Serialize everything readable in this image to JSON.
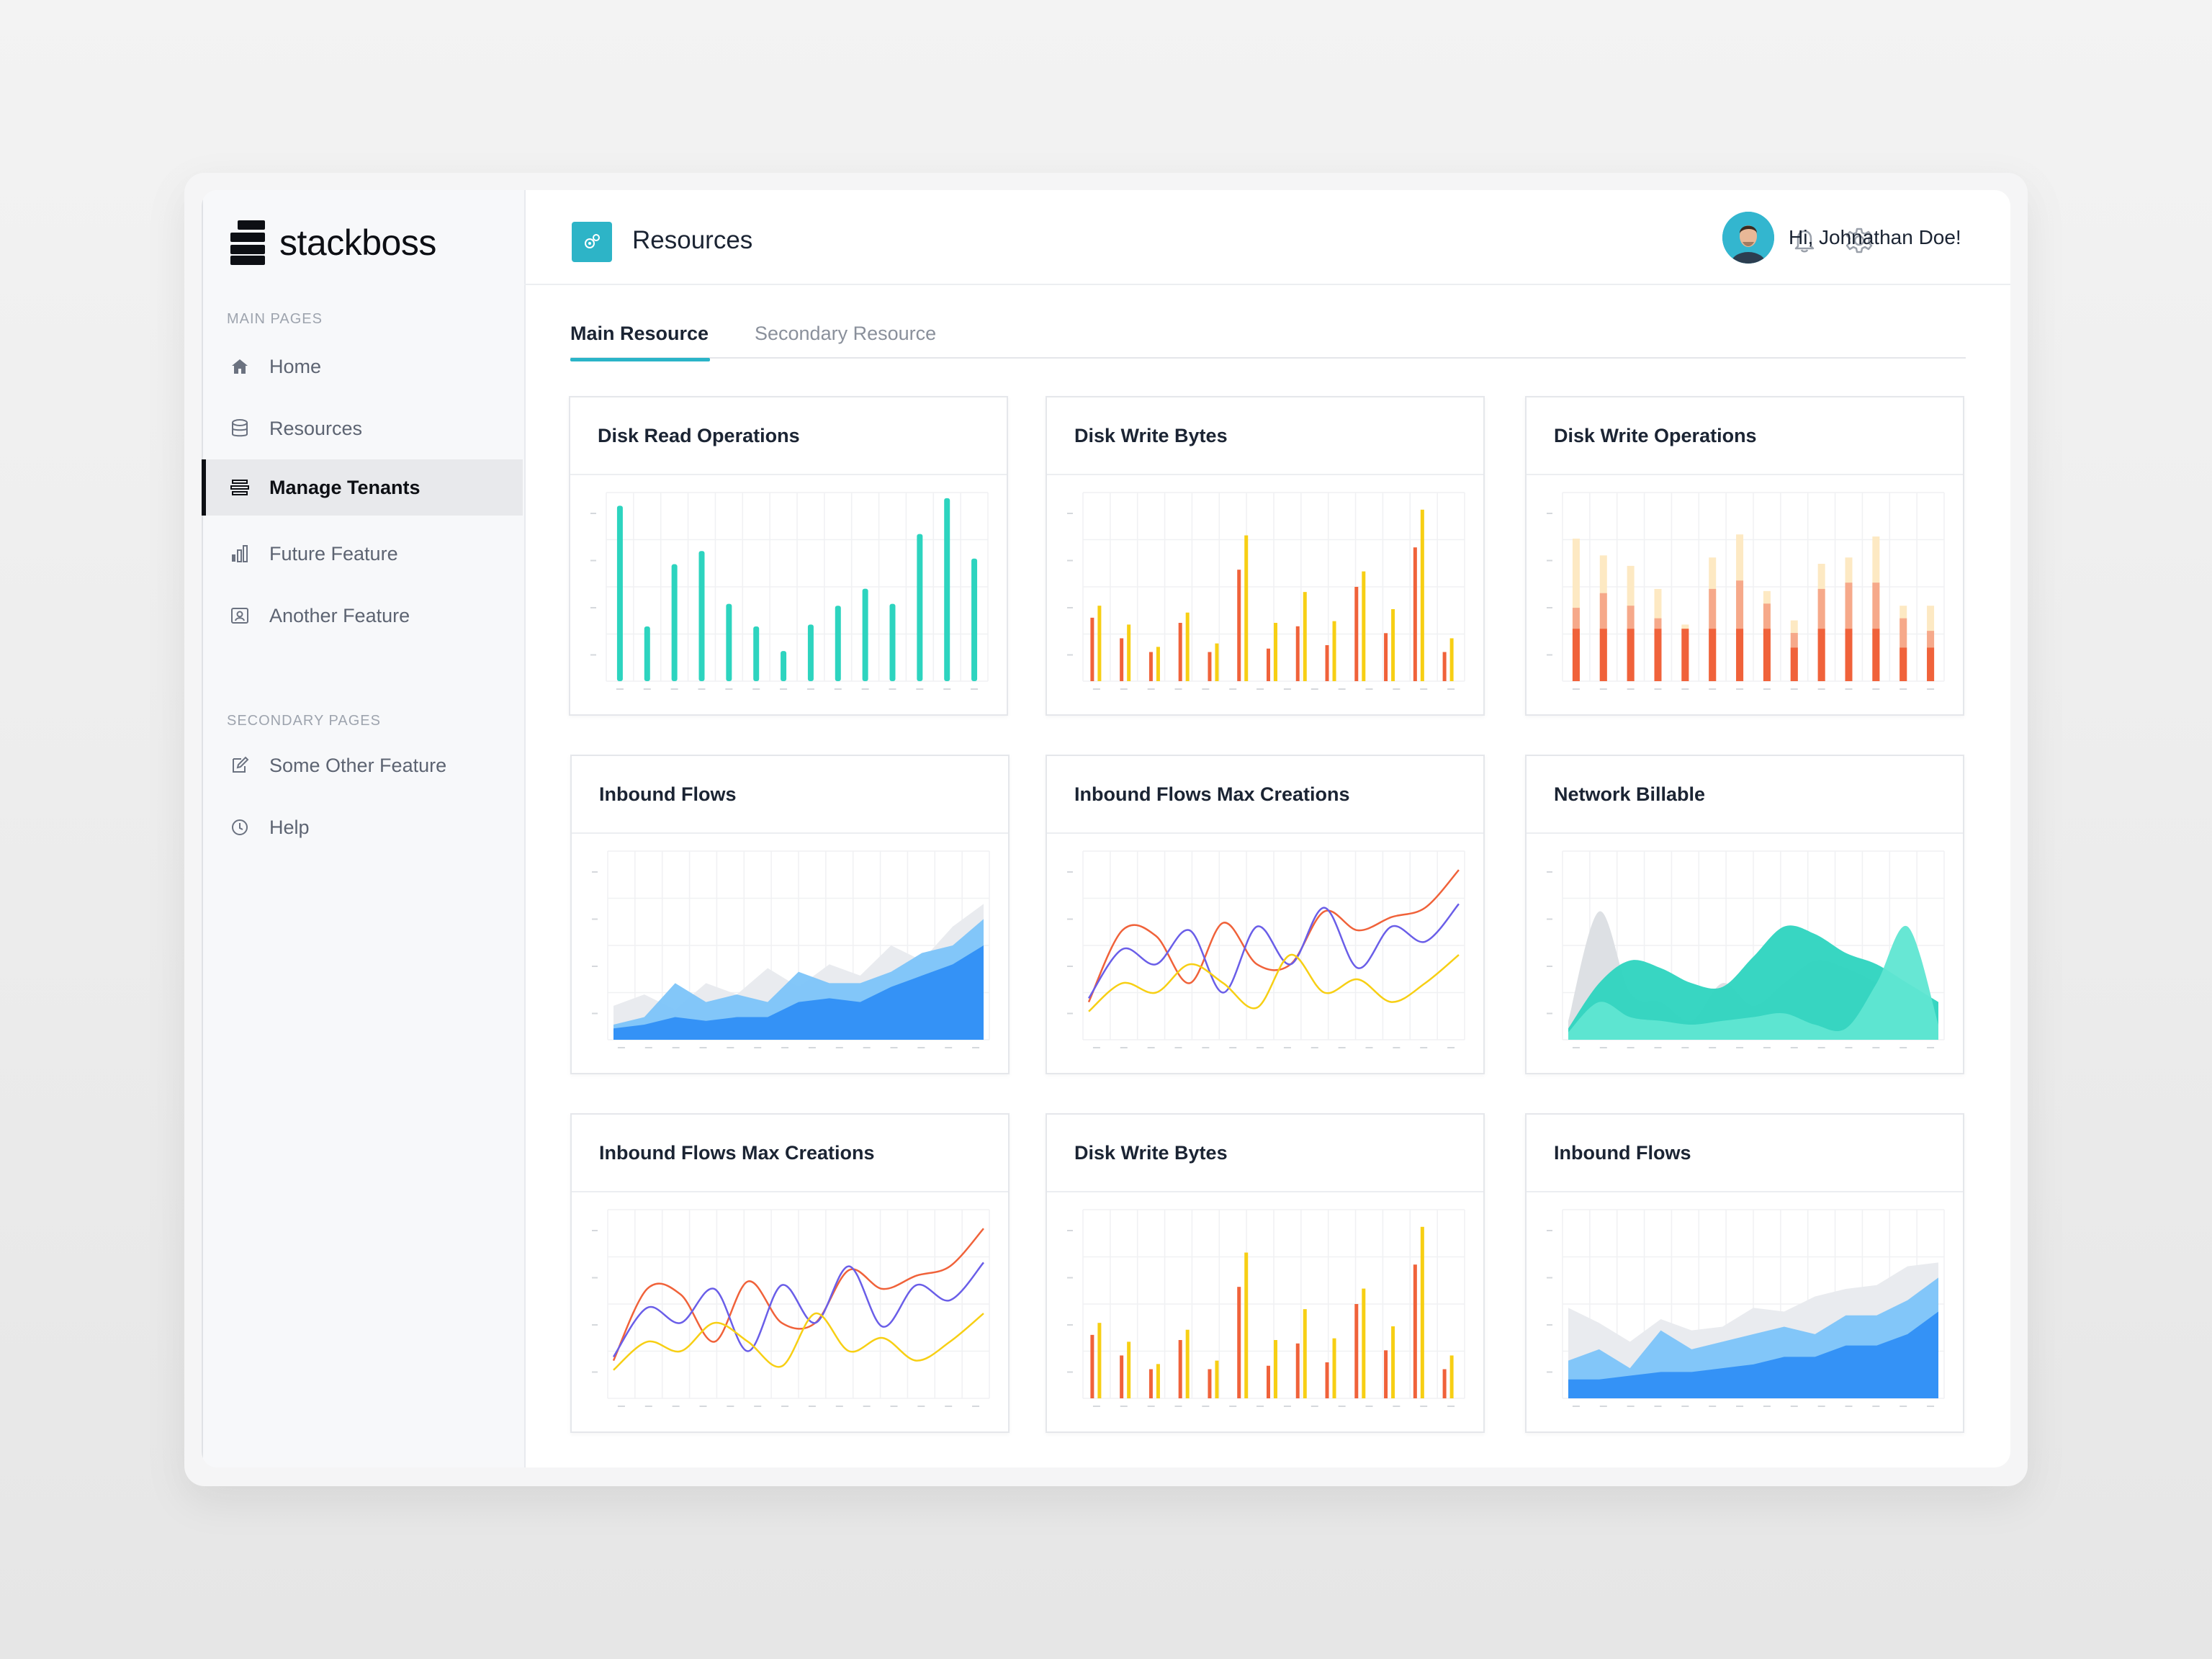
{
  "app": {
    "brand": "stackboss",
    "page_title": "Resources",
    "greeting": "Hi, Johnathan Doe!"
  },
  "sidebar": {
    "main_title": "MAIN PAGES",
    "secondary_title": "SECONDARY PAGES",
    "main_items": [
      {
        "label": "Home",
        "icon": "home-icon"
      },
      {
        "label": "Resources",
        "icon": "database-icon"
      },
      {
        "label": "Manage Tenants",
        "icon": "tenants-icon",
        "active": true
      },
      {
        "label": "Future Feature",
        "icon": "bar-chart-icon"
      },
      {
        "label": "Another Feature",
        "icon": "id-card-icon"
      }
    ],
    "secondary_items": [
      {
        "label": "Some Other Feature",
        "icon": "edit-icon"
      },
      {
        "label": "Help",
        "icon": "help-icon"
      }
    ]
  },
  "header_icons": [
    "search-icon",
    "bell-icon",
    "gear-icon"
  ],
  "tabs": [
    {
      "label": "Main Resource",
      "active": true
    },
    {
      "label": "Secondary Resource",
      "active": false
    }
  ],
  "colors": {
    "accent": "#2ab4c8",
    "teal": "#2dd4bf",
    "orange": "#f0623a",
    "yellow": "#f7cf14",
    "blue": "#2f8ff5",
    "purple": "#6a5ee8"
  },
  "cards": [
    {
      "title": "Disk Read Operations"
    },
    {
      "title": "Disk Write Bytes"
    },
    {
      "title": "Disk Write Operations"
    },
    {
      "title": "Inbound Flows"
    },
    {
      "title": "Inbound Flows Max Creations"
    },
    {
      "title": "Network Billable"
    },
    {
      "title": "Inbound Flows Max Creations"
    },
    {
      "title": "Disk Write Bytes"
    },
    {
      "title": "Inbound Flows"
    }
  ],
  "chart_data": [
    {
      "type": "bar",
      "values": [
        93,
        29,
        62,
        69,
        41,
        29,
        16,
        30,
        40,
        49,
        41,
        78,
        97,
        65
      ],
      "ylim": [
        0,
        100
      ]
    },
    {
      "type": "bar",
      "series": [
        {
          "values": [
            37,
            25,
            17,
            34,
            17,
            65,
            19,
            32,
            21,
            55,
            28,
            78,
            17
          ]
        },
        {
          "values": [
            44,
            33,
            20,
            40,
            22,
            85,
            34,
            52,
            35,
            64,
            42,
            100,
            25
          ]
        }
      ],
      "ylim": [
        0,
        110
      ]
    },
    {
      "type": "bar",
      "series": [
        {
          "values": [
            25,
            25,
            25,
            25,
            25,
            25,
            25,
            25,
            16,
            25,
            25,
            25,
            16,
            16
          ]
        },
        {
          "values": [
            35,
            42,
            36,
            30,
            25,
            44,
            48,
            37,
            23,
            44,
            47,
            47,
            30,
            24
          ]
        },
        {
          "values": [
            68,
            60,
            55,
            44,
            27,
            59,
            70,
            43,
            29,
            56,
            59,
            69,
            36,
            36
          ]
        }
      ],
      "ylim": [
        0,
        90
      ]
    },
    {
      "type": "area",
      "series": [
        {
          "values": [
            18,
            24,
            16,
            30,
            24,
            38,
            28,
            40,
            34,
            50,
            42,
            60,
            72
          ]
        },
        {
          "values": [
            8,
            12,
            30,
            20,
            24,
            20,
            36,
            30,
            30,
            36,
            46,
            50,
            64
          ]
        },
        {
          "values": [
            6,
            8,
            12,
            10,
            12,
            12,
            20,
            22,
            20,
            28,
            34,
            40,
            50
          ]
        }
      ],
      "ylim": [
        0,
        100
      ]
    },
    {
      "type": "line",
      "series": [
        {
          "values": [
            20,
            58,
            55,
            30,
            62,
            40,
            40,
            68,
            58,
            65,
            70,
            90
          ]
        },
        {
          "values": [
            22,
            48,
            40,
            58,
            25,
            60,
            40,
            70,
            38,
            60,
            52,
            72
          ]
        },
        {
          "values": [
            15,
            30,
            25,
            40,
            30,
            17,
            45,
            25,
            32,
            20,
            30,
            45
          ]
        }
      ],
      "ylim": [
        0,
        100
      ]
    },
    {
      "type": "area",
      "series": [
        {
          "values": [
            10,
            68,
            25,
            20,
            10,
            30,
            18,
            30,
            42,
            38,
            30,
            18,
            20
          ]
        },
        {
          "values": [
            6,
            30,
            42,
            38,
            30,
            28,
            44,
            60,
            56,
            46,
            40,
            30,
            20
          ]
        },
        {
          "values": [
            4,
            20,
            12,
            10,
            8,
            10,
            12,
            14,
            8,
            6,
            30,
            60,
            8
          ]
        }
      ],
      "ylim": [
        0,
        100
      ]
    },
    {
      "type": "line",
      "series": [
        {
          "values": [
            20,
            58,
            55,
            30,
            62,
            40,
            40,
            68,
            58,
            65,
            70,
            90
          ]
        },
        {
          "values": [
            22,
            48,
            40,
            58,
            25,
            60,
            40,
            70,
            38,
            60,
            52,
            72
          ]
        },
        {
          "values": [
            15,
            30,
            25,
            40,
            30,
            17,
            45,
            25,
            32,
            20,
            30,
            45
          ]
        }
      ],
      "ylim": [
        0,
        100
      ]
    },
    {
      "type": "bar",
      "series": [
        {
          "values": [
            37,
            25,
            17,
            34,
            17,
            65,
            19,
            32,
            21,
            55,
            28,
            78,
            17
          ]
        },
        {
          "values": [
            44,
            33,
            20,
            40,
            22,
            85,
            34,
            52,
            35,
            64,
            42,
            100,
            25
          ]
        }
      ],
      "ylim": [
        0,
        110
      ]
    },
    {
      "type": "area",
      "series": [
        {
          "values": [
            48,
            40,
            30,
            42,
            36,
            38,
            48,
            46,
            54,
            58,
            60,
            70,
            72
          ]
        },
        {
          "values": [
            20,
            26,
            16,
            36,
            26,
            30,
            34,
            38,
            34,
            44,
            44,
            52,
            64
          ]
        },
        {
          "values": [
            10,
            10,
            12,
            14,
            14,
            16,
            18,
            22,
            22,
            28,
            28,
            34,
            46
          ]
        }
      ],
      "ylim": [
        0,
        100
      ]
    }
  ]
}
